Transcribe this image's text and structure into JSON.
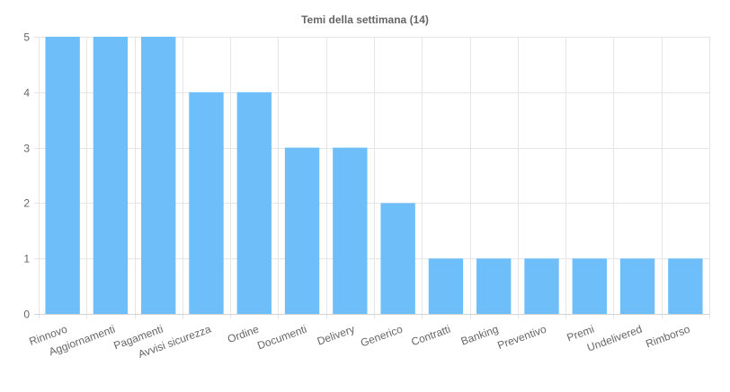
{
  "chart_data": {
    "type": "bar",
    "title": "Temi della settimana (14)",
    "xlabel": "",
    "ylabel": "",
    "categories": [
      "Rinnovo",
      "Aggiornamenti",
      "Pagamenti",
      "Avvisi sicurezza",
      "Ordine",
      "Documenti",
      "Delivery",
      "Generico",
      "Contratti",
      "Banking",
      "Preventivo",
      "Premi",
      "Undelivered",
      "Rimborso"
    ],
    "values": [
      5,
      5,
      5,
      4,
      4,
      3,
      3,
      2,
      1,
      1,
      1,
      1,
      1,
      1
    ],
    "ylim": [
      0,
      5
    ],
    "yticks": [
      0,
      1,
      2,
      3,
      4,
      5
    ],
    "grid": true,
    "legend": "none",
    "bar_color": "#6ebff9",
    "grid_color": "#e5e5e5",
    "text_color": "#666666"
  }
}
